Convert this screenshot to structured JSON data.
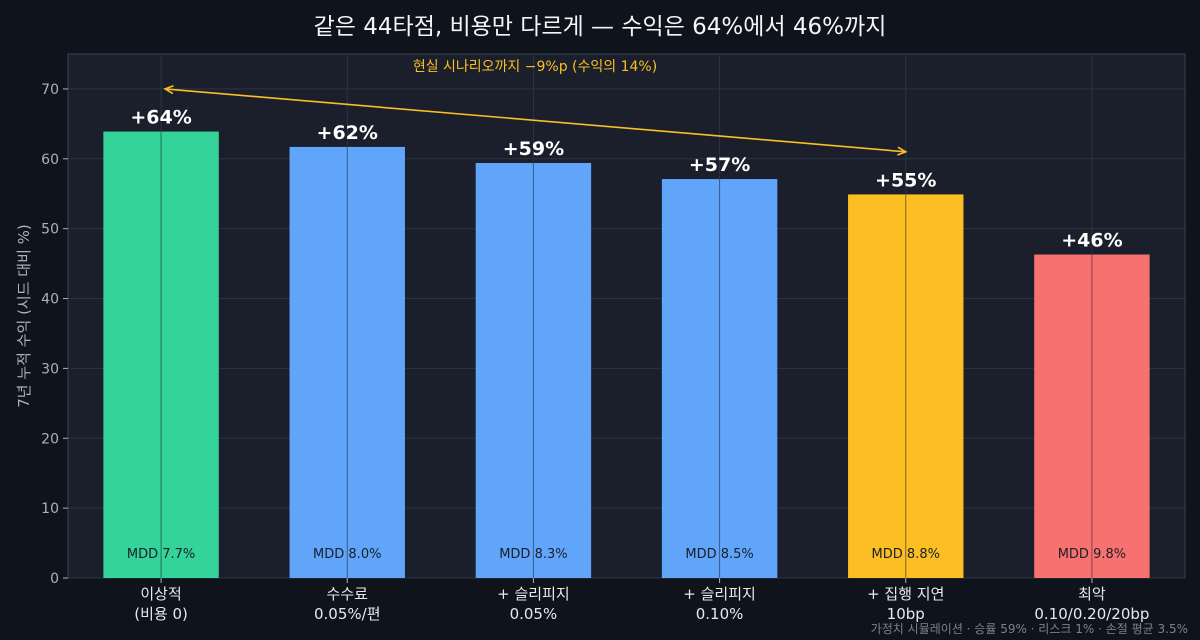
{
  "chart_data": {
    "type": "bar",
    "title": "같은 44타점, 비용만 다르게 — 수익은 64%에서 46%까지",
    "ylabel": "7년 누적 수익 (시드 대비 %)",
    "xlabel": "",
    "ylim": [
      0,
      75
    ],
    "yticks": [
      0,
      10,
      20,
      30,
      40,
      50,
      60,
      70
    ],
    "grid": true,
    "categories": [
      [
        "이상적",
        "(비용 0)"
      ],
      [
        "수수료",
        "0.05%/편"
      ],
      [
        "+ 슬리피지",
        "0.05%"
      ],
      [
        "+ 슬리피지",
        "0.10%"
      ],
      [
        "+ 집행 지연",
        "10bp"
      ],
      [
        "최악",
        "0.10/0.20/20bp"
      ]
    ],
    "values": [
      63.9,
      61.7,
      59.4,
      57.1,
      54.9,
      46.3
    ],
    "value_labels": [
      "+64%",
      "+62%",
      "+59%",
      "+57%",
      "+55%",
      "+46%"
    ],
    "mdd_labels": [
      "MDD 7.7%",
      "MDD 8.0%",
      "MDD 8.3%",
      "MDD 8.5%",
      "MDD 8.8%",
      "MDD 9.8%"
    ],
    "colors": [
      "#34d399",
      "#60a5fa",
      "#60a5fa",
      "#60a5fa",
      "#fbbf24",
      "#f87171"
    ],
    "annotation": {
      "text": "현실 시나리오까지 −9%p (수익의 14%)",
      "arrow_from": {
        "category_index": 4,
        "value": 61
      },
      "arrow_to": {
        "category_index": 0,
        "value": 70
      },
      "color": "#fbbf24"
    },
    "footnote": "가정치 시뮬레이션 · 승률 59% · 리스크 1% · 손절 평균 3.5%"
  },
  "theme": {
    "background": "#0f131b",
    "plot_background": "#1a1f2b",
    "grid_color": "#2c3342",
    "axis_color": "#3a4252"
  }
}
